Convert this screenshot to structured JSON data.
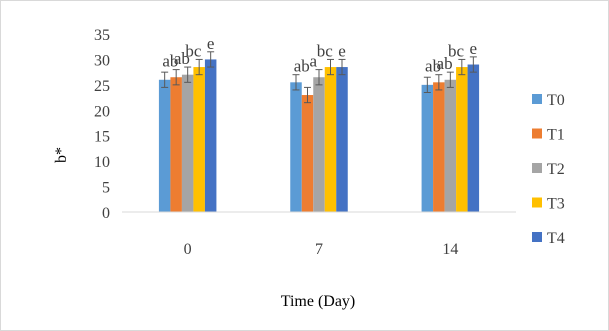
{
  "chart_data": {
    "type": "bar",
    "title": "",
    "xlabel": "Time (Day)",
    "ylabel": "b*",
    "ylim": [
      0,
      35
    ],
    "yticks": [
      0,
      5,
      10,
      15,
      20,
      25,
      30,
      35
    ],
    "categories": [
      "0",
      "7",
      "14"
    ],
    "grid": false,
    "legend": "right",
    "series": [
      {
        "name": "T0",
        "color": "#5B9BD5",
        "values": [
          26.0,
          25.5,
          25.0
        ],
        "errors": [
          1.5,
          1.5,
          1.5
        ]
      },
      {
        "name": "T1",
        "color": "#ED7D31",
        "values": [
          26.5,
          23.0,
          25.5
        ],
        "errors": [
          1.5,
          1.5,
          1.5
        ]
      },
      {
        "name": "T2",
        "color": "#A5A5A5",
        "values": [
          27.0,
          26.5,
          26.0
        ],
        "errors": [
          1.5,
          1.5,
          1.5
        ]
      },
      {
        "name": "T3",
        "color": "#FFC000",
        "values": [
          28.5,
          28.5,
          28.5
        ],
        "errors": [
          1.5,
          1.5,
          1.5
        ]
      },
      {
        "name": "T4",
        "color": "#4472C4",
        "values": [
          30.0,
          28.5,
          29.0
        ],
        "errors": [
          1.5,
          1.5,
          1.5
        ]
      }
    ],
    "annotations": [
      {
        "category": "0",
        "text": "ab"
      },
      {
        "category": "0",
        "text": "ab"
      },
      {
        "category": "0",
        "text": "bc"
      },
      {
        "category": "0",
        "text": "e"
      },
      {
        "category": "7",
        "text": "ab"
      },
      {
        "category": "7",
        "text": "a"
      },
      {
        "category": "7",
        "text": "bc"
      },
      {
        "category": "7",
        "text": "e"
      },
      {
        "category": "14",
        "text": "ab"
      },
      {
        "category": "14",
        "text": "ab"
      },
      {
        "category": "14",
        "text": "bc"
      },
      {
        "category": "14",
        "text": "e"
      }
    ]
  }
}
